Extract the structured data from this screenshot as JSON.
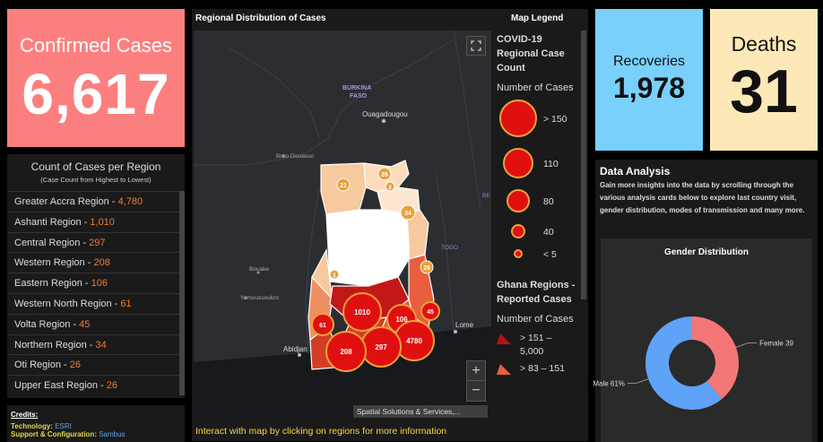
{
  "confirmed": {
    "label": "Confirmed Cases",
    "value": "6,617"
  },
  "recoveries": {
    "label": "Recoveries",
    "value": "1,978"
  },
  "deaths": {
    "label": "Deaths",
    "value": "31"
  },
  "region_panel": {
    "title": "Count of Cases per Region",
    "subtitle": "(Case Count from Highest to Lowest)",
    "rows": [
      {
        "name": "Greater Accra Region - ",
        "count": "4,780"
      },
      {
        "name": "Ashanti Region - ",
        "count": "1,010"
      },
      {
        "name": "Central Region - ",
        "count": "297"
      },
      {
        "name": "Western Region - ",
        "count": "208"
      },
      {
        "name": "Eastern Region - ",
        "count": "106"
      },
      {
        "name": "Western North Region - ",
        "count": "61"
      },
      {
        "name": "Volta Region - ",
        "count": "45"
      },
      {
        "name": "Northern Region - ",
        "count": "34"
      },
      {
        "name": "Oti Region - ",
        "count": "26"
      },
      {
        "name": "Upper East Region - ",
        "count": "26"
      }
    ]
  },
  "credits": {
    "title": "Credits:",
    "technology_label": "Technology: ",
    "technology_value": "ESRI",
    "support_label": "Support & Configuration: ",
    "support_value": "Sambus"
  },
  "map": {
    "title": "Regional Distribution of Cases",
    "legend_title": "Map Legend",
    "footer": "Interact with map by clicking on regions for more information",
    "attribution": "Spatial Solutions & Services,...",
    "zoom_in": "+",
    "zoom_out": "−",
    "place_labels": [
      {
        "text": "BURKINA",
        "cls": "country"
      },
      {
        "text": "FASO",
        "cls": "country"
      },
      {
        "text": "Ouagadougou",
        "cls": "city"
      },
      {
        "text": "Bobo-Dioulasso",
        "cls": "small"
      },
      {
        "text": "Bouake",
        "cls": "small"
      },
      {
        "text": "Yamoussoukro",
        "cls": "small"
      },
      {
        "text": "Abidjan",
        "cls": "city"
      },
      {
        "text": "Lome",
        "cls": "city"
      },
      {
        "text": "TOGO",
        "cls": "country"
      },
      {
        "text": "BE",
        "cls": "country"
      }
    ],
    "bubbles": [
      {
        "label": "1010",
        "value": 1010,
        "color": "#e01010"
      },
      {
        "label": "106",
        "value": 106,
        "color": "#e01010"
      },
      {
        "label": "45",
        "value": 45,
        "color": "#e01010"
      },
      {
        "label": "61",
        "value": 61,
        "color": "#e01010"
      },
      {
        "label": "4780",
        "value": 4780,
        "color": "#e01010"
      },
      {
        "label": "297",
        "value": 297,
        "color": "#e01010"
      },
      {
        "label": "208",
        "value": 208,
        "color": "#e01010"
      },
      {
        "label": "26",
        "value": 26,
        "color": "#e8a13b"
      },
      {
        "label": "21",
        "value": 21,
        "color": "#e8a13b"
      },
      {
        "label": "2",
        "value": 2,
        "color": "#e8a13b"
      },
      {
        "label": "34",
        "value": 34,
        "color": "#e8a13b"
      },
      {
        "label": "1",
        "value": 1,
        "color": "#e8a13b"
      },
      {
        "label": "26",
        "value": 26,
        "color": "#e8a13b"
      }
    ]
  },
  "legend": {
    "layer1_title": "COVID-19 Regional Case Count",
    "layer1_sub": "Number of Cases",
    "classes": [
      {
        "label": "> 150"
      },
      {
        "label": "110"
      },
      {
        "label": "80"
      },
      {
        "label": "40"
      },
      {
        "label": "< 5"
      }
    ],
    "layer2_title": "Ghana Regions - Reported Cases",
    "layer2_sub": "Number of Cases",
    "fills": [
      {
        "label": "> 151 – 5,000",
        "color": "#b31313"
      },
      {
        "label": "> 83 – 151",
        "color": "#e85e3e"
      }
    ]
  },
  "analysis": {
    "title": "Data Analysis",
    "description": "Gain more insights into the data by scrolling through the various analysis cards below to explore last country visit, gender distribution, modes of transmission and many more.",
    "gender_title": "Gender Distribution",
    "chart_data": {
      "type": "pie",
      "title": "Gender Distribution",
      "slices": [
        {
          "label": "Female 39",
          "value": 39,
          "color": "#f47777"
        },
        {
          "label": "Male 61%",
          "value": 61,
          "color": "#5ea3f8"
        }
      ]
    }
  },
  "colors": {
    "confirmed": "#fc7f7f",
    "recoveries": "#79d0fa",
    "deaths": "#fde9b7",
    "count_accent": "#f07c2d",
    "footer_text": "#f5d742"
  }
}
